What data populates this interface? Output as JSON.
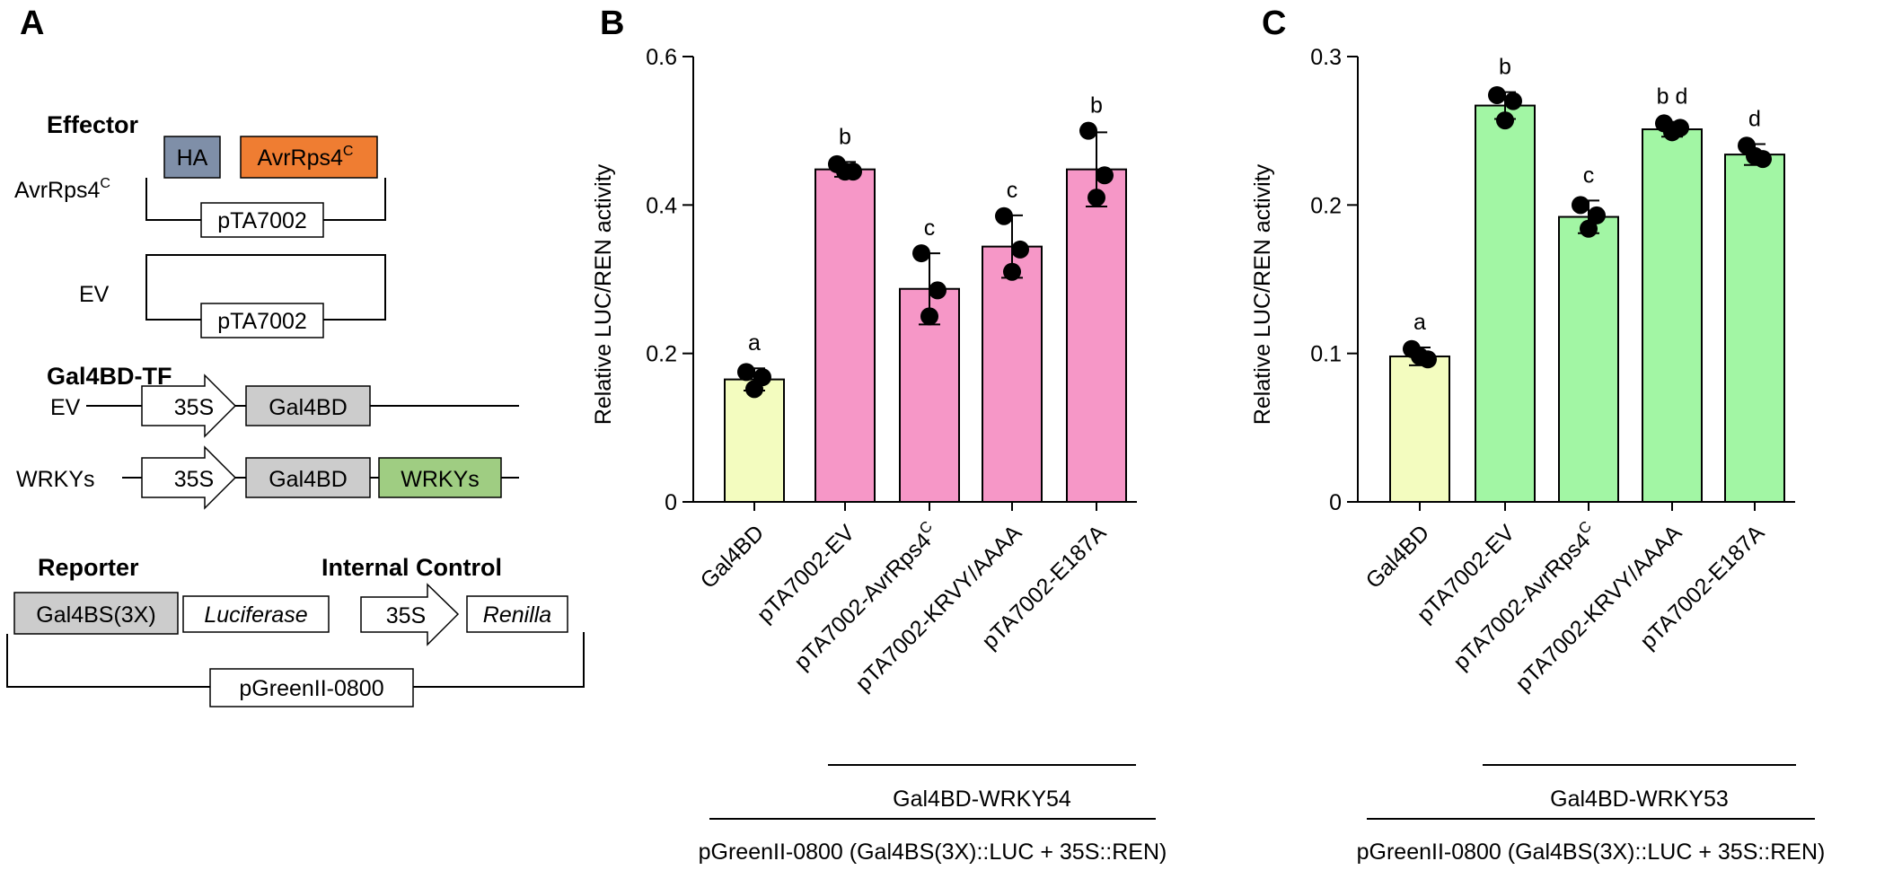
{
  "panel_a": {
    "letter": "A",
    "effector": {
      "heading": "Effector",
      "ha": "HA",
      "avr_box": "AvrRps4",
      "avr_box_sup": "C",
      "avr_label": "AvrRps4",
      "avr_label_sup": "C",
      "vector1": "pTA7002",
      "ev_label": "EV",
      "vector2": "pTA7002"
    },
    "gal4bd_tf": {
      "heading": "Gal4BD-TF",
      "ev_label": "EV",
      "promoter1": "35S",
      "gal4bd1": "Gal4BD",
      "wrky_label": "WRKYs",
      "promoter2": "35S",
      "gal4bd2": "Gal4BD",
      "wrkys_box": "WRKYs"
    },
    "reporter": {
      "heading": "Reporter",
      "internal_heading": "Internal Control",
      "gal4bs": "Gal4BS(3X)",
      "luciferase": "Luciferase",
      "promoter": "35S",
      "renilla": "Renilla",
      "vector": "pGreenII-0800"
    },
    "colors": {
      "ha": "#7f8fa8",
      "avr": "#ef7d32",
      "gal4bd": "#cccccc",
      "wrkys": "#9fcd82",
      "gal4bs": "#cccccc"
    }
  },
  "chart_data": [
    {
      "type": "bar",
      "panel_letter": "B",
      "ylabel": "Relative LUC/REN activity",
      "ylim": [
        0,
        0.6
      ],
      "yticks": [
        0,
        0.2,
        0.4,
        0.6
      ],
      "ytick_labels": [
        "0",
        "0.2",
        "0.4",
        "0.6"
      ],
      "categories": [
        {
          "main": "Gal4BD",
          "sup": ""
        },
        {
          "main": "pTA7002-EV",
          "sup": ""
        },
        {
          "main": "pTA7002-AvrRps4",
          "sup": "C"
        },
        {
          "main": "pTA7002-KRVY/AAAA",
          "sup": ""
        },
        {
          "main": "pTA7002-E187A",
          "sup": ""
        }
      ],
      "values": [
        0.165,
        0.448,
        0.287,
        0.344,
        0.448
      ],
      "errors": [
        0.015,
        0.01,
        0.048,
        0.042,
        0.05
      ],
      "points": [
        [
          0.175,
          0.168,
          0.152
        ],
        [
          0.455,
          0.445,
          0.445
        ],
        [
          0.335,
          0.285,
          0.25
        ],
        [
          0.385,
          0.34,
          0.31
        ],
        [
          0.5,
          0.44,
          0.41
        ]
      ],
      "letters": [
        "a",
        "b",
        "c",
        "c",
        "b"
      ],
      "colors": [
        "#f3fcbf",
        "#f697c7",
        "#f697c7",
        "#f697c7",
        "#f697c7"
      ],
      "bracket_inner": "Gal4BD-WRKY54",
      "bracket_outer": "pGreenII-0800 (Gal4BS(3X)::LUC + 35S::REN)",
      "grid": false,
      "legend": "none"
    },
    {
      "type": "bar",
      "panel_letter": "C",
      "ylabel": "Relative LUC/REN activity",
      "ylim": [
        0,
        0.3
      ],
      "yticks": [
        0,
        0.1,
        0.2,
        0.3
      ],
      "ytick_labels": [
        "0",
        "0.1",
        "0.2",
        "0.3"
      ],
      "categories": [
        {
          "main": "Gal4BD",
          "sup": ""
        },
        {
          "main": "pTA7002-EV",
          "sup": ""
        },
        {
          "main": "pTA7002-AvrRps4",
          "sup": "C"
        },
        {
          "main": "pTA7002-KRVY/AAAA",
          "sup": ""
        },
        {
          "main": "pTA7002-E187A",
          "sup": ""
        }
      ],
      "values": [
        0.098,
        0.267,
        0.192,
        0.251,
        0.234
      ],
      "errors": [
        0.006,
        0.009,
        0.011,
        0.005,
        0.007
      ],
      "points": [
        [
          0.103,
          0.096,
          0.098
        ],
        [
          0.274,
          0.27,
          0.257
        ],
        [
          0.2,
          0.193,
          0.184
        ],
        [
          0.255,
          0.252,
          0.249
        ],
        [
          0.24,
          0.231,
          0.233
        ]
      ],
      "letters": [
        "a",
        "b",
        "c",
        "bd",
        "d"
      ],
      "colors": [
        "#f3fcbf",
        "#a2f6a4",
        "#a2f6a4",
        "#a2f6a4",
        "#a2f6a4"
      ],
      "bracket_inner": "Gal4BD-WRKY53",
      "bracket_outer": "pGreenII-0800 (Gal4BS(3X)::LUC + 35S::REN)",
      "grid": false,
      "legend": "none"
    }
  ]
}
